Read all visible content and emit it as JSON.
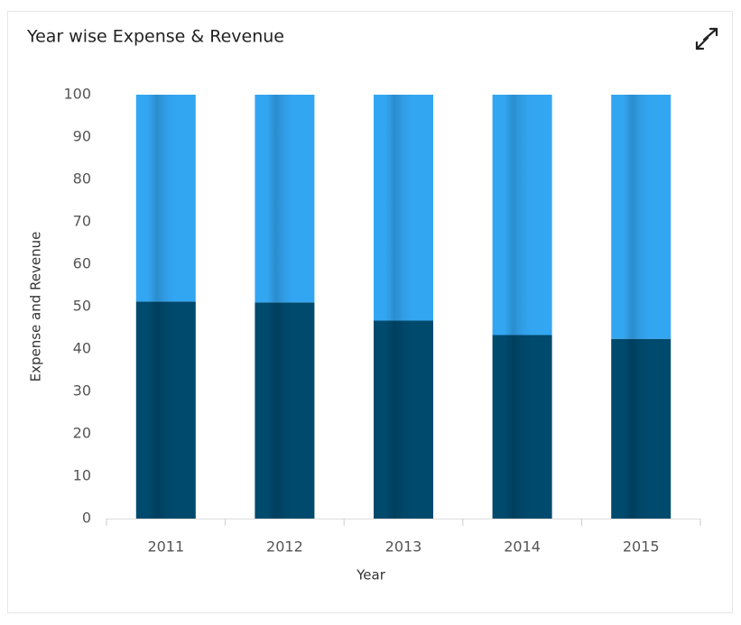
{
  "chart_data": {
    "type": "stacked_bar",
    "title": "Year wise Expense & Revenue",
    "x_label": "Year",
    "y_label": "Expense and Revenue",
    "categories": [
      "2011",
      "2012",
      "2013",
      "2014",
      "2015"
    ],
    "series": [
      {
        "color": "#004a6e",
        "values": [
          51.2,
          51,
          46.7,
          43.3,
          42.4
        ]
      },
      {
        "color": "#33a6f2",
        "values": [
          48.8,
          49,
          53.3,
          56.7,
          57.6
        ]
      }
    ],
    "ylim": [
      0,
      100
    ],
    "yticks": [
      0,
      10,
      20,
      30,
      40,
      50,
      60,
      70,
      80,
      90,
      100
    ]
  }
}
